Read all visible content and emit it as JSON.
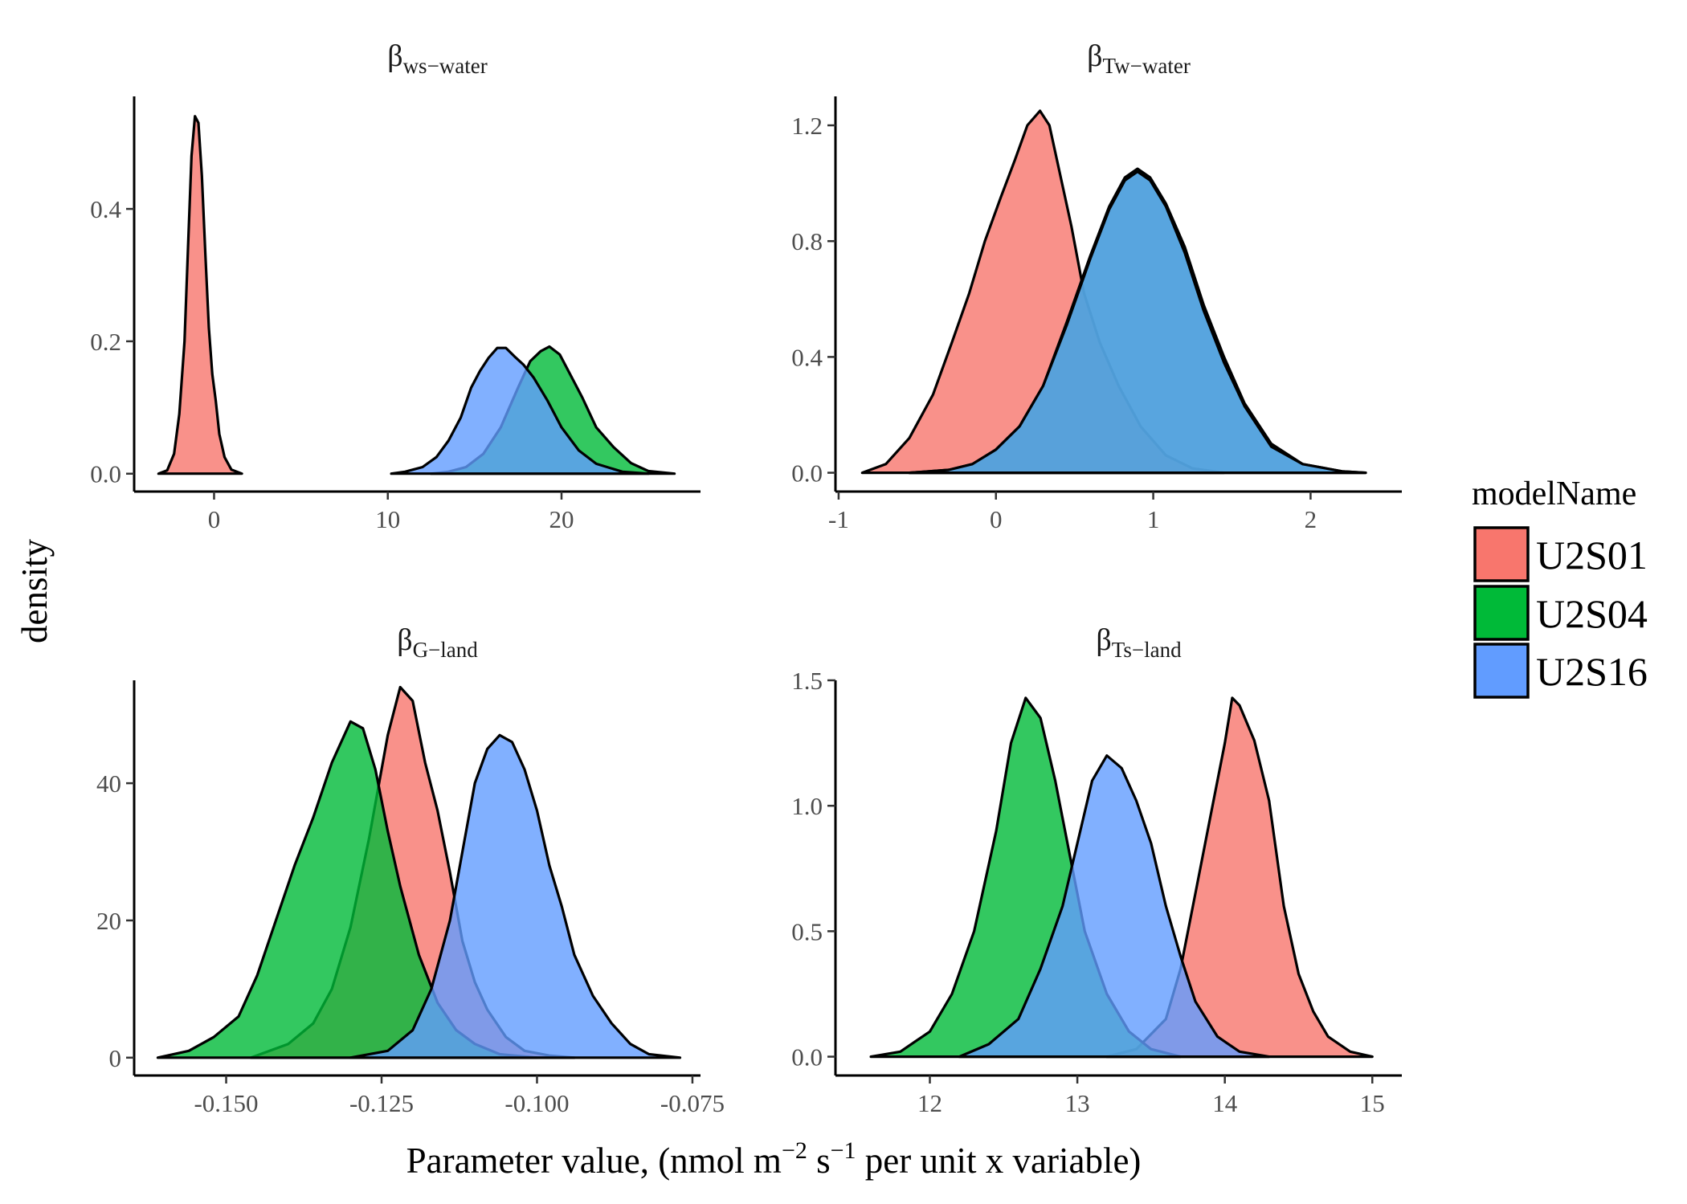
{
  "chart_data": [
    {
      "type": "area",
      "panel": "top-left",
      "title": "β",
      "title_subscript": "ws−water",
      "xlim": [
        -4.6,
        28.0
      ],
      "ylim": [
        -0.027,
        0.57
      ],
      "x_ticks": [
        0,
        10,
        20
      ],
      "x_tick_labels": [
        "0",
        "10",
        "20"
      ],
      "y_ticks": [
        0.0,
        0.2,
        0.4
      ],
      "y_tick_labels": [
        "0.0",
        "0.2",
        "0.4"
      ],
      "series": [
        {
          "name": "U2S01",
          "x": [
            -3.2,
            -2.7,
            -2.3,
            -2.0,
            -1.7,
            -1.5,
            -1.3,
            -1.1,
            -0.9,
            -0.7,
            -0.5,
            -0.3,
            -0.1,
            0.1,
            0.3,
            0.6,
            1.0,
            1.6
          ],
          "y": [
            0.0,
            0.005,
            0.03,
            0.09,
            0.2,
            0.34,
            0.48,
            0.54,
            0.53,
            0.45,
            0.33,
            0.22,
            0.15,
            0.11,
            0.06,
            0.025,
            0.006,
            0.0
          ]
        },
        {
          "name": "U2S04",
          "x": [
            12.5,
            13.5,
            14.5,
            15.5,
            16.5,
            17.5,
            18.2,
            18.8,
            19.3,
            19.9,
            20.5,
            21.2,
            22.0,
            23.0,
            24.0,
            25.0,
            26.5
          ],
          "y": [
            0.0,
            0.003,
            0.01,
            0.03,
            0.07,
            0.13,
            0.17,
            0.185,
            0.192,
            0.18,
            0.15,
            0.115,
            0.07,
            0.04,
            0.016,
            0.004,
            0.0
          ]
        },
        {
          "name": "U2S16",
          "x": [
            10.2,
            11.0,
            12.0,
            12.8,
            13.5,
            14.2,
            14.8,
            15.3,
            15.8,
            16.3,
            16.8,
            17.3,
            17.8,
            18.4,
            19.2,
            20.0,
            21.0,
            22.0,
            23.5,
            25.0
          ],
          "y": [
            0.0,
            0.003,
            0.01,
            0.025,
            0.05,
            0.085,
            0.13,
            0.155,
            0.175,
            0.19,
            0.19,
            0.177,
            0.165,
            0.145,
            0.11,
            0.07,
            0.035,
            0.015,
            0.003,
            0.0
          ]
        }
      ]
    },
    {
      "type": "area",
      "panel": "top-right",
      "title": "β",
      "title_subscript": "Tw−water",
      "xlim": [
        -1.02,
        2.58
      ],
      "ylim": [
        -0.065,
        1.3
      ],
      "x_ticks": [
        -1,
        0,
        1,
        2
      ],
      "x_tick_labels": [
        "-1",
        "0",
        "1",
        "2"
      ],
      "y_ticks": [
        0.0,
        0.4,
        0.8,
        1.2
      ],
      "y_tick_labels": [
        "0.0",
        "0.4",
        "0.8",
        "1.2"
      ],
      "series": [
        {
          "name": "U2S01",
          "x": [
            -0.85,
            -0.7,
            -0.55,
            -0.4,
            -0.28,
            -0.17,
            -0.07,
            0.03,
            0.12,
            0.2,
            0.28,
            0.34,
            0.4,
            0.48,
            0.56,
            0.66,
            0.78,
            0.92,
            1.08,
            1.25,
            1.45
          ],
          "y": [
            0.0,
            0.03,
            0.12,
            0.27,
            0.45,
            0.62,
            0.8,
            0.95,
            1.08,
            1.2,
            1.25,
            1.2,
            1.05,
            0.85,
            0.62,
            0.45,
            0.3,
            0.16,
            0.06,
            0.015,
            0.0
          ]
        },
        {
          "name": "U2S04",
          "x": [
            -0.55,
            -0.3,
            -0.15,
            0.0,
            0.15,
            0.3,
            0.45,
            0.6,
            0.72,
            0.82,
            0.9,
            0.98,
            1.08,
            1.2,
            1.32,
            1.45,
            1.58,
            1.75,
            1.95,
            2.2,
            2.35
          ],
          "y": [
            0.0,
            0.01,
            0.03,
            0.08,
            0.16,
            0.3,
            0.52,
            0.75,
            0.92,
            1.02,
            1.05,
            1.02,
            0.93,
            0.78,
            0.58,
            0.4,
            0.24,
            0.1,
            0.03,
            0.005,
            0.0
          ]
        },
        {
          "name": "U2S16",
          "x": [
            -0.55,
            -0.3,
            -0.15,
            0.0,
            0.15,
            0.3,
            0.45,
            0.6,
            0.72,
            0.82,
            0.9,
            0.98,
            1.08,
            1.2,
            1.32,
            1.45,
            1.58,
            1.75,
            1.95,
            2.2,
            2.35
          ],
          "y": [
            0.0,
            0.01,
            0.03,
            0.08,
            0.16,
            0.3,
            0.51,
            0.74,
            0.91,
            1.01,
            1.04,
            1.01,
            0.92,
            0.76,
            0.56,
            0.38,
            0.23,
            0.09,
            0.03,
            0.005,
            0.0
          ]
        }
      ]
    },
    {
      "type": "area",
      "panel": "bottom-left",
      "title": "β",
      "title_subscript": "G−land",
      "xlim": [
        -0.1648,
        -0.0737
      ],
      "ylim": [
        -2.6,
        55.0
      ],
      "x_ticks": [
        -0.15,
        -0.125,
        -0.1,
        -0.075
      ],
      "x_tick_labels": [
        "-0.150",
        "-0.125",
        "-0.100",
        "-0.075"
      ],
      "y_ticks": [
        0,
        20,
        40
      ],
      "y_tick_labels": [
        "0",
        "20",
        "40"
      ],
      "series": [
        {
          "name": "U2S01",
          "x": [
            -0.146,
            -0.14,
            -0.136,
            -0.133,
            -0.13,
            -0.127,
            -0.124,
            -0.122,
            -0.12,
            -0.118,
            -0.116,
            -0.114,
            -0.112,
            -0.11,
            -0.108,
            -0.105,
            -0.102,
            -0.098,
            -0.094
          ],
          "y": [
            0,
            2,
            5,
            10,
            19,
            32,
            47,
            54,
            52,
            43,
            36,
            27,
            17,
            11,
            7,
            3,
            1,
            0.3,
            0
          ]
        },
        {
          "name": "U2S04",
          "x": [
            -0.161,
            -0.156,
            -0.152,
            -0.148,
            -0.145,
            -0.142,
            -0.139,
            -0.136,
            -0.133,
            -0.13,
            -0.128,
            -0.126,
            -0.124,
            -0.122,
            -0.119,
            -0.116,
            -0.113,
            -0.11,
            -0.106,
            -0.1
          ],
          "y": [
            0,
            1,
            3,
            6,
            12,
            20,
            28,
            35,
            43,
            49,
            48,
            42,
            33,
            25,
            15,
            8,
            4,
            2,
            0.5,
            0
          ]
        },
        {
          "name": "U2S16",
          "x": [
            -0.13,
            -0.124,
            -0.12,
            -0.117,
            -0.114,
            -0.112,
            -0.11,
            -0.108,
            -0.106,
            -0.104,
            -0.102,
            -0.1,
            -0.098,
            -0.096,
            -0.094,
            -0.091,
            -0.088,
            -0.085,
            -0.082,
            -0.077
          ],
          "y": [
            0,
            1,
            4,
            10,
            20,
            30,
            40,
            45,
            47,
            46,
            42,
            36,
            28,
            22,
            15,
            9,
            5,
            2,
            0.5,
            0
          ]
        }
      ]
    },
    {
      "type": "area",
      "panel": "bottom-right",
      "title": "β",
      "title_subscript": "Ts−land",
      "xlim": [
        11.36,
        15.2
      ],
      "ylim": [
        -0.075,
        1.5
      ],
      "x_ticks": [
        12,
        13,
        14,
        15
      ],
      "x_tick_labels": [
        "12",
        "13",
        "14",
        "15"
      ],
      "y_ticks": [
        0.0,
        0.5,
        1.0,
        1.5
      ],
      "y_tick_labels": [
        "0.0",
        "0.5",
        "1.0",
        "1.5"
      ],
      "series": [
        {
          "name": "U2S01",
          "x": [
            13.2,
            13.4,
            13.6,
            13.7,
            13.8,
            13.9,
            14.0,
            14.05,
            14.1,
            14.2,
            14.3,
            14.4,
            14.5,
            14.6,
            14.7,
            14.85,
            15.0
          ],
          "y": [
            0.0,
            0.03,
            0.15,
            0.35,
            0.65,
            0.95,
            1.25,
            1.43,
            1.4,
            1.26,
            1.02,
            0.6,
            0.33,
            0.18,
            0.08,
            0.02,
            0.0
          ]
        },
        {
          "name": "U2S04",
          "x": [
            11.6,
            11.8,
            12.0,
            12.15,
            12.3,
            12.45,
            12.55,
            12.65,
            12.75,
            12.85,
            12.95,
            13.05,
            13.2,
            13.35,
            13.5,
            13.7
          ],
          "y": [
            0.0,
            0.02,
            0.1,
            0.25,
            0.5,
            0.9,
            1.25,
            1.43,
            1.35,
            1.1,
            0.8,
            0.5,
            0.25,
            0.1,
            0.03,
            0.0
          ]
        },
        {
          "name": "U2S16",
          "x": [
            12.2,
            12.4,
            12.6,
            12.75,
            12.9,
            13.0,
            13.1,
            13.2,
            13.3,
            13.4,
            13.5,
            13.6,
            13.7,
            13.8,
            13.95,
            14.1,
            14.3
          ],
          "y": [
            0.0,
            0.05,
            0.15,
            0.35,
            0.6,
            0.85,
            1.1,
            1.2,
            1.15,
            1.02,
            0.85,
            0.6,
            0.4,
            0.22,
            0.08,
            0.02,
            0.0
          ]
        }
      ]
    }
  ],
  "axes": {
    "xlabel": "Parameter value, (nmol m",
    "xlabel_sup1": "−2",
    "xlabel_mid": " s",
    "xlabel_sup2": "−1",
    "xlabel_end": " per unit x variable)",
    "ylabel": "density"
  },
  "legend": {
    "title": "modelName",
    "position": "right",
    "items": [
      {
        "label": "U2S01",
        "color": "#F8766D"
      },
      {
        "label": "U2S04",
        "color": "#00BA38"
      },
      {
        "label": "U2S16",
        "color": "#619CFF"
      }
    ]
  },
  "colors": {
    "U2S01": "#F8766D",
    "U2S04": "#00BA38",
    "U2S16": "#619CFF"
  }
}
